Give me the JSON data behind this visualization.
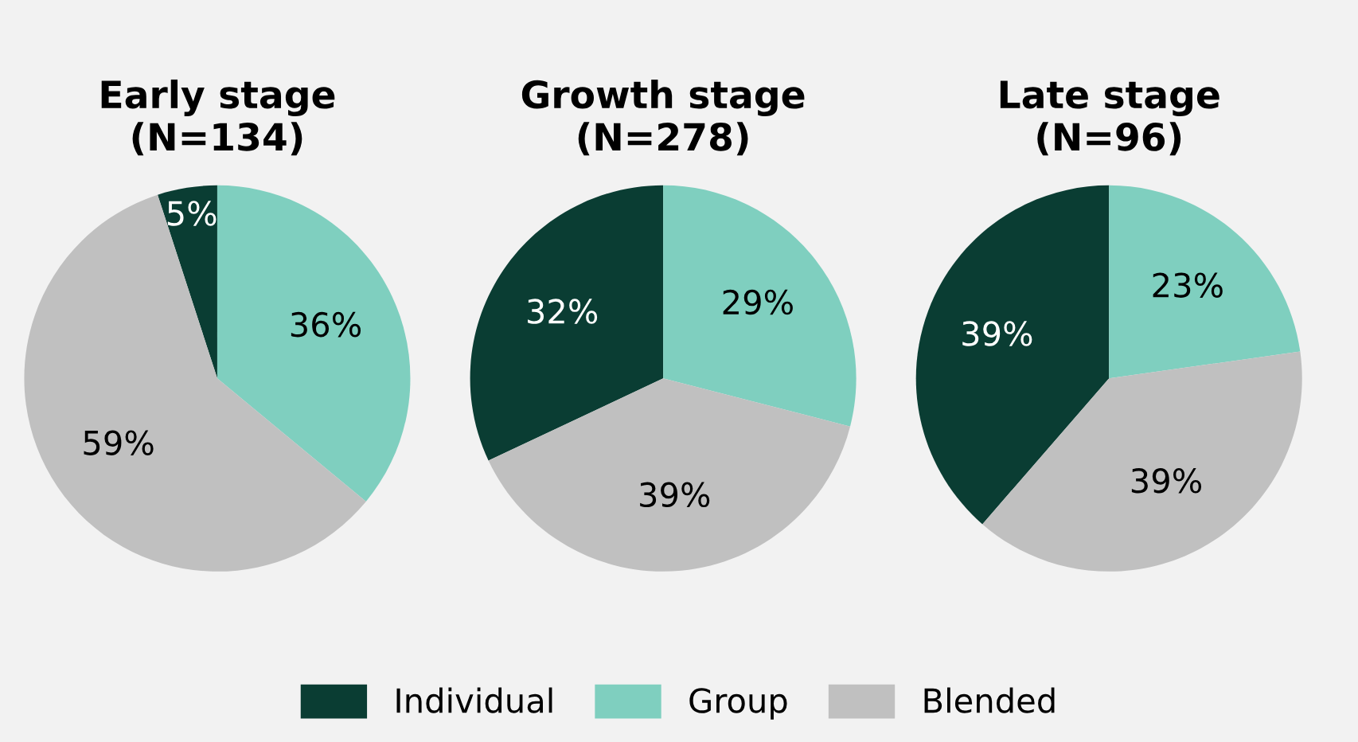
{
  "chart_data": [
    {
      "type": "pie",
      "title": "Early stage\n(N=134)",
      "categories": [
        "Individual",
        "Group",
        "Blended"
      ],
      "values": [
        5,
        36,
        59
      ],
      "value_labels": [
        "5%",
        "36%",
        "59%"
      ],
      "colors": [
        "#0a3d33",
        "#7fcfbf",
        "#c0c0c0"
      ],
      "legend": "bottom"
    },
    {
      "type": "pie",
      "title": "Growth stage\n(N=278)",
      "categories": [
        null,
        null,
        null
      ],
      "values": [
        32,
        29,
        39
      ],
      "value_labels": [
        "32%",
        "29%",
        "39%"
      ],
      "colors": [
        "#0a3d33",
        "#7fcfbf",
        "#c0c0c0"
      ]
    },
    {
      "type": "pie",
      "title": "Late stage\n(N=96)",
      "categories": [
        null,
        null,
        null
      ],
      "values": [
        39,
        23,
        39
      ],
      "value_labels": [
        "39%",
        "23%",
        "39%"
      ],
      "colors": [
        "#0a3d33",
        "#7fcfbf",
        "#c0c0c0"
      ]
    }
  ]
}
